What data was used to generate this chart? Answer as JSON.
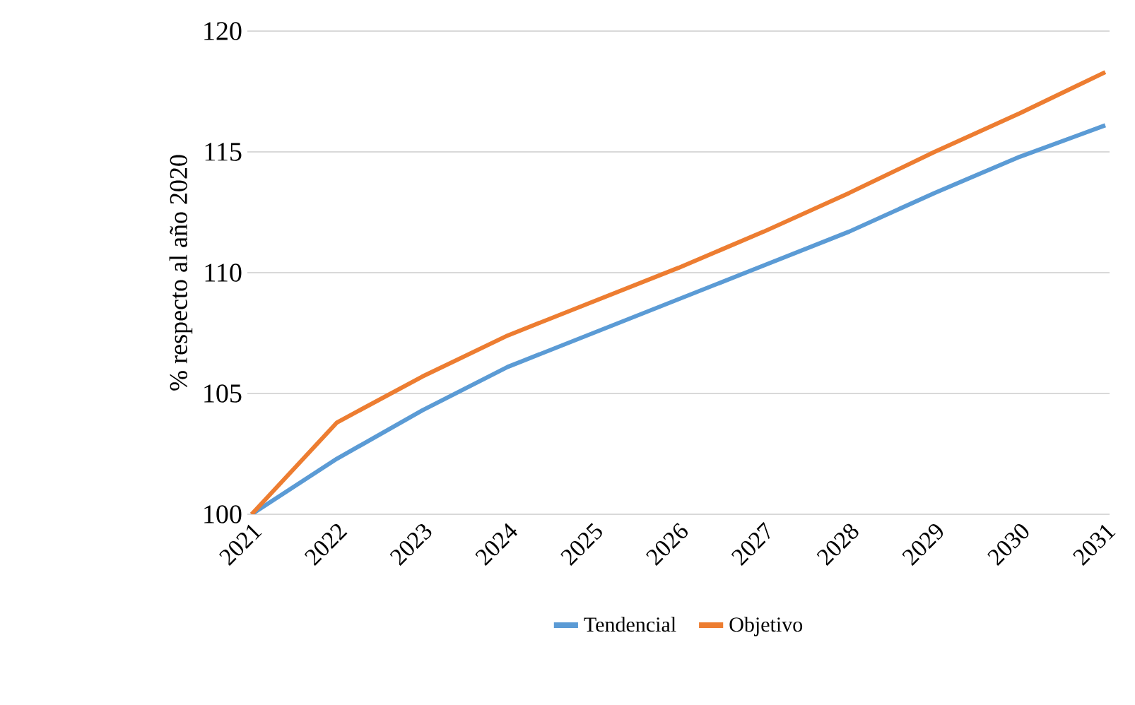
{
  "chart_data": {
    "type": "line",
    "ylabel": "% respecto al año 2020",
    "categories": [
      "2021",
      "2022",
      "2023",
      "2024",
      "2025",
      "2026",
      "2027",
      "2028",
      "2029",
      "2030",
      "2031"
    ],
    "series": [
      {
        "name": "Tendencial",
        "color": "#5b9bd5",
        "values": [
          100,
          102.3,
          104.3,
          106.1,
          107.5,
          108.9,
          110.3,
          111.7,
          113.3,
          114.8,
          116.1
        ]
      },
      {
        "name": "Objetivo",
        "color": "#ed7d31",
        "values": [
          100,
          103.8,
          105.7,
          107.4,
          108.8,
          110.2,
          111.7,
          113.3,
          115.0,
          116.6,
          118.3
        ]
      }
    ],
    "ylim": [
      100,
      120
    ],
    "yticks": [
      100,
      105,
      110,
      115,
      120
    ],
    "grid": "y",
    "legend": "bottom",
    "marker": "none",
    "line_style": "solid"
  }
}
